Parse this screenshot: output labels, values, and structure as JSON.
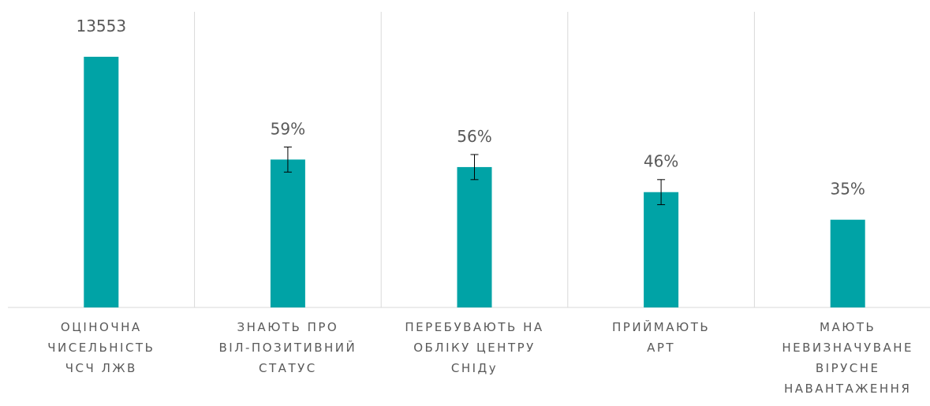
{
  "chart_data": {
    "type": "bar",
    "categories": [
      "ОЦІНОЧНА\nЧИСЕЛЬНІСТЬ\nЧСЧ ЛЖВ",
      "ЗНАЮТЬ ПРО\nВІЛ-ПОЗИТИВНИЙ\nСТАТУС",
      "ПЕРЕБУВАЮТЬ НА\nОБЛІКУ ЦЕНТРУ\nСНІДу",
      "ПРИЙМАЮТЬ\nАРТ",
      "МАЮТЬ\nНЕВИЗНАЧУВАНЕ\nВІРУСНЕ\nНАВАНТАЖЕННЯ"
    ],
    "values": [
      13553,
      59,
      56,
      46,
      35
    ],
    "value_labels": [
      "13553",
      "59%",
      "56%",
      "46%",
      "35%"
    ],
    "errors": [
      null,
      5,
      5,
      5,
      null
    ],
    "color": "#00a3a6"
  }
}
